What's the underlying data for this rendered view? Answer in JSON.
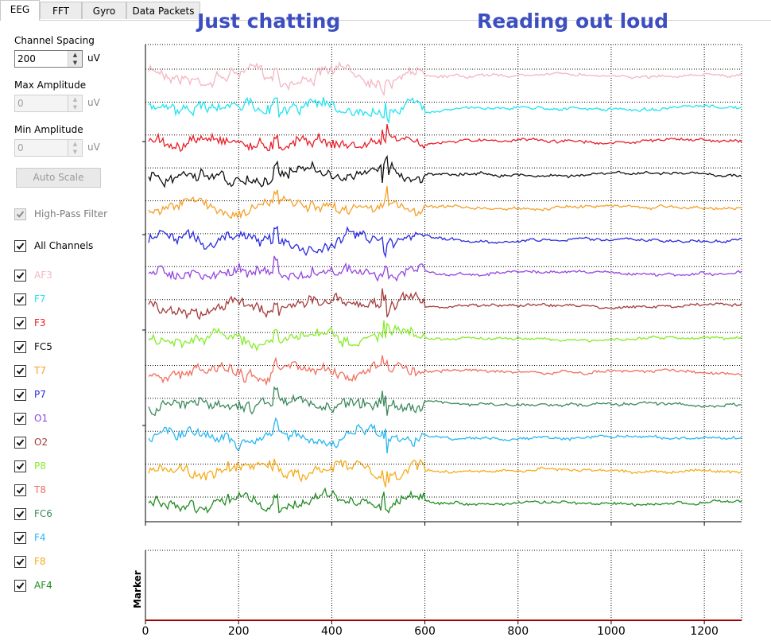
{
  "tabs": [
    {
      "label": "EEG",
      "active": true
    },
    {
      "label": "FFT",
      "active": false
    },
    {
      "label": "Gyro",
      "active": false
    },
    {
      "label": "Data Packets",
      "active": false
    }
  ],
  "annotations": {
    "left": "Just chatting",
    "right": "Reading out loud"
  },
  "settings": {
    "channel_spacing_label": "Channel Spacing",
    "channel_spacing_value": "200",
    "max_amplitude_label": "Max Amplitude",
    "max_amplitude_value": "0",
    "min_amplitude_label": "Min Amplitude",
    "min_amplitude_value": "0",
    "unit": "uV",
    "auto_scale_label": "Auto Scale",
    "high_pass_label": "High-Pass Filter",
    "high_pass_checked": true,
    "all_channels_label": "All Channels"
  },
  "channels": [
    {
      "name": "AF3",
      "color": "#f4b6c2",
      "checked": true
    },
    {
      "name": "F7",
      "color": "#22e3f0",
      "checked": true
    },
    {
      "name": "F3",
      "color": "#e8202a",
      "checked": true
    },
    {
      "name": "FC5",
      "color": "#111111",
      "checked": true
    },
    {
      "name": "T7",
      "color": "#f5a02a",
      "checked": true
    },
    {
      "name": "P7",
      "color": "#2a2ae0",
      "checked": true
    },
    {
      "name": "O1",
      "color": "#9446e0",
      "checked": true
    },
    {
      "name": "O2",
      "color": "#a33c3c",
      "checked": true
    },
    {
      "name": "P8",
      "color": "#86ec28",
      "checked": true
    },
    {
      "name": "T8",
      "color": "#f07060",
      "checked": true
    },
    {
      "name": "FC6",
      "color": "#3d8a5c",
      "checked": true
    },
    {
      "name": "F4",
      "color": "#28b8f0",
      "checked": true
    },
    {
      "name": "F8",
      "color": "#f5ac1a",
      "checked": true
    },
    {
      "name": "AF4",
      "color": "#228c22",
      "checked": true
    }
  ],
  "marker_label": "Marker",
  "chart_data": {
    "type": "line",
    "x_ticks": [
      0,
      200,
      400,
      600,
      800,
      1000,
      1200
    ],
    "xlim": [
      0,
      1280
    ],
    "marker_value": 0
  }
}
